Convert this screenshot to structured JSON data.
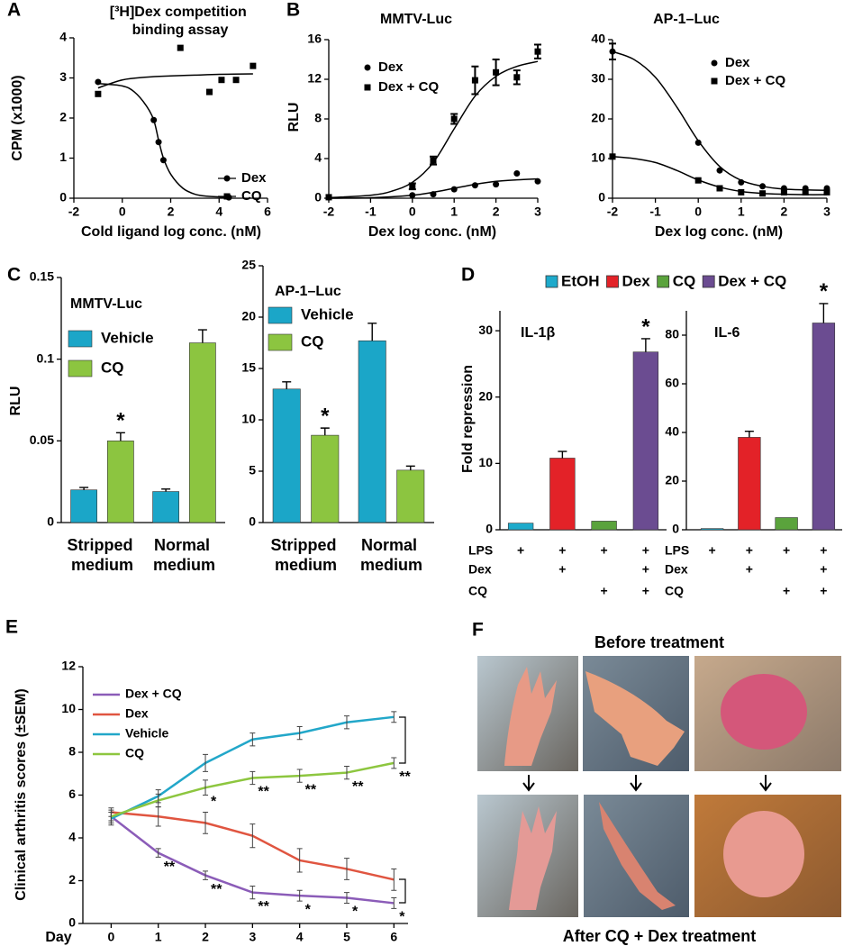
{
  "chart_data": [
    {
      "type": "scatter",
      "panel": "A",
      "title": "[³H]Dex competition binding assay",
      "x_label": "Cold ligand log conc. (nM)",
      "y_label": "CPM (x1000)",
      "xlim": [
        -2,
        6
      ],
      "xticks": [
        -2,
        0,
        2,
        4,
        6
      ],
      "ylim": [
        0,
        4
      ],
      "yticks": [
        0,
        1,
        2,
        3,
        4
      ],
      "series": [
        {
          "name": "Dex",
          "color": "#000000",
          "marker": "circle",
          "x": [
            -1,
            1.3,
            1.5,
            1.7,
            4.4
          ],
          "values": [
            2.9,
            1.95,
            1.4,
            0.95,
            0.02
          ],
          "fit_x": [
            -1,
            0,
            0.5,
            1,
            1.3,
            1.5,
            1.7,
            2,
            2.5,
            3,
            3.5,
            4.4
          ],
          "fit_values": [
            2.86,
            2.8,
            2.65,
            2.3,
            1.95,
            1.45,
            1.0,
            0.6,
            0.25,
            0.1,
            0.05,
            0.02
          ]
        },
        {
          "name": "CQ",
          "color": "#000000",
          "marker": "square",
          "x": [
            -1,
            2.4,
            3.6,
            4.1,
            4.7,
            5.4
          ],
          "values": [
            2.6,
            3.75,
            2.65,
            2.95,
            2.95,
            3.3
          ],
          "fit_x": [
            -1,
            0,
            1,
            2,
            3,
            4,
            5.4
          ],
          "fit_values": [
            2.75,
            2.95,
            3.02,
            3.05,
            3.07,
            3.09,
            3.1
          ]
        }
      ]
    },
    {
      "type": "scatter",
      "panel": "B",
      "title": "MMTV-Luc",
      "x_label": "Dex log conc. (nM)",
      "y_label": "RLU",
      "xlim": [
        -2,
        3
      ],
      "xticks": [
        -2,
        -1,
        0,
        1,
        2,
        3
      ],
      "ylim": [
        0,
        16
      ],
      "yticks": [
        0,
        4,
        8,
        12,
        16
      ],
      "series": [
        {
          "name": "Dex",
          "color": "#000000",
          "marker": "circle",
          "x": [
            -2,
            0,
            0.5,
            1,
            1.5,
            2,
            2.5,
            3
          ],
          "values": [
            0.1,
            0.3,
            0.4,
            0.9,
            1.3,
            1.4,
            2.5,
            1.7
          ],
          "fit_x": [
            -2,
            -1,
            0,
            0.5,
            1,
            1.5,
            2,
            2.5,
            3
          ],
          "fit_values": [
            0,
            0.05,
            0.3,
            0.6,
            1.0,
            1.4,
            1.7,
            1.85,
            1.95
          ]
        },
        {
          "name": "Dex + CQ",
          "color": "#000000",
          "marker": "square",
          "x": [
            -2,
            0,
            0.5,
            1,
            1.5,
            2,
            2.5,
            3
          ],
          "values": [
            0.1,
            1.2,
            3.8,
            8,
            11.9,
            12.7,
            12.2,
            14.8
          ],
          "errors": [
            null,
            0.3,
            0.4,
            0.5,
            1.4,
            1.3,
            0.7,
            0.7
          ],
          "fit_x": [
            -2,
            -1,
            -0.5,
            0,
            0.5,
            1,
            1.5,
            2,
            2.5,
            3
          ],
          "fit_values": [
            0.05,
            0.3,
            0.7,
            1.6,
            3.6,
            7,
            10.3,
            12.3,
            13.3,
            13.8
          ]
        }
      ]
    },
    {
      "type": "scatter",
      "title": "AP-1–Luc",
      "x_label": "Dex log conc. (nM)",
      "xlim": [
        -2,
        3
      ],
      "xticks": [
        -2,
        -1,
        0,
        1,
        2,
        3
      ],
      "ylim": [
        0,
        40
      ],
      "yticks": [
        0,
        10,
        20,
        30,
        40
      ],
      "series": [
        {
          "name": "Dex",
          "color": "#000000",
          "marker": "circle",
          "x": [
            -2,
            0,
            0.5,
            1,
            1.5,
            2,
            2.5,
            3
          ],
          "values": [
            37,
            14,
            7,
            4,
            3,
            2.5,
            2.5,
            2.5
          ],
          "errors": [
            2,
            null,
            null,
            null,
            null,
            null,
            null,
            null
          ],
          "fit_x": [
            -2,
            -1.5,
            -1,
            -0.5,
            0,
            0.5,
            1,
            1.5,
            2,
            2.5,
            3
          ],
          "fit_values": [
            37,
            35,
            30.5,
            23,
            14.5,
            8,
            4.5,
            3,
            2.3,
            2.1,
            2
          ]
        },
        {
          "name": "Dex + CQ",
          "color": "#000000",
          "marker": "square",
          "x": [
            -2,
            0,
            0.5,
            1,
            1.5,
            2,
            2.5,
            3
          ],
          "values": [
            10.5,
            4.5,
            2.5,
            1.5,
            1.2,
            1.5,
            1.5,
            1.5
          ],
          "fit_x": [
            -2,
            -1.5,
            -1,
            -0.5,
            0,
            0.5,
            1,
            1.5,
            2,
            2.5,
            3
          ],
          "fit_values": [
            10.5,
            10,
            9,
            7,
            4.6,
            2.8,
            1.7,
            1.2,
            1,
            0.9,
            0.9
          ]
        }
      ]
    },
    {
      "type": "bar",
      "panel": "C",
      "title": "MMTV-Luc",
      "y_label": "RLU",
      "categories": [
        "Stripped medium",
        "Normal medium"
      ],
      "ylim": [
        0,
        0.15
      ],
      "yticks": [
        0,
        0.05,
        0.1,
        0.15
      ],
      "series": [
        {
          "name": "Vehicle",
          "color": "#1ba6c8",
          "values": [
            0.02,
            0.019
          ],
          "errors": [
            0.0015,
            0.0015
          ]
        },
        {
          "name": "CQ",
          "color": "#8cc540",
          "values": [
            0.05,
            0.11
          ],
          "errors": [
            0.005,
            0.008
          ],
          "significance": [
            "*",
            null
          ]
        }
      ]
    },
    {
      "type": "bar",
      "title": "AP-1–Luc",
      "categories": [
        "Stripped medium",
        "Normal medium"
      ],
      "ylim": [
        0,
        25
      ],
      "yticks": [
        0,
        5,
        10,
        15,
        20,
        25
      ],
      "series": [
        {
          "name": "Vehicle",
          "color": "#1ba6c8",
          "values": [
            13,
            17.7
          ],
          "errors": [
            0.7,
            1.7
          ]
        },
        {
          "name": "CQ",
          "color": "#8cc540",
          "values": [
            8.5,
            5.1
          ],
          "errors": [
            0.7,
            0.4
          ],
          "significance": [
            "*",
            null
          ]
        }
      ]
    },
    {
      "type": "bar",
      "panel": "D",
      "title": "IL-1β",
      "y_label": "Fold repression",
      "ylim": [
        0,
        33
      ],
      "yticks": [
        0,
        10,
        20,
        30
      ],
      "series": [
        {
          "name": "EtOH",
          "color": "#1eaacb",
          "values": [
            1
          ]
        },
        {
          "name": "Dex",
          "color": "#e32228",
          "values": [
            10.8
          ],
          "errors": [
            1
          ]
        },
        {
          "name": "CQ",
          "color": "#5aa33c",
          "values": [
            1.3
          ]
        },
        {
          "name": "Dex + CQ",
          "color": "#6b4c91",
          "values": [
            26.8
          ],
          "errors": [
            2
          ],
          "significance": [
            "*"
          ]
        }
      ],
      "treatments": [
        {
          "label": "LPS",
          "marks": [
            "+",
            "+",
            "+",
            "+"
          ]
        },
        {
          "label": "Dex",
          "marks": [
            null,
            "+",
            null,
            "+"
          ]
        },
        {
          "label": "CQ",
          "marks": [
            null,
            null,
            "+",
            "+"
          ]
        }
      ]
    },
    {
      "type": "bar",
      "title": "IL-6",
      "ylim": [
        0,
        90
      ],
      "yticks": [
        0,
        20,
        40,
        60,
        80
      ],
      "series": [
        {
          "color": "#1eaacb",
          "values": [
            0.5
          ]
        },
        {
          "color": "#e32228",
          "values": [
            38
          ],
          "errors": [
            2.5
          ]
        },
        {
          "color": "#5aa33c",
          "values": [
            5
          ]
        },
        {
          "color": "#6b4c91",
          "values": [
            85
          ],
          "errors": [
            8
          ],
          "significance": [
            "*"
          ]
        }
      ],
      "treatments": [
        {
          "label": "LPS",
          "marks": [
            "+",
            "+",
            "+",
            "+"
          ]
        },
        {
          "label": "Dex",
          "marks": [
            null,
            "+",
            null,
            "+"
          ]
        },
        {
          "label": "CQ",
          "marks": [
            null,
            null,
            "+",
            "+"
          ]
        }
      ]
    },
    {
      "type": "line",
      "panel": "E",
      "x_label": "Day",
      "y_label": "Clinical arthritis scores (±SEM)",
      "x": [
        0,
        1,
        2,
        3,
        4,
        5,
        6
      ],
      "xlim": [
        -0.6,
        6.3
      ],
      "xticks": [
        0,
        1,
        2,
        3,
        4,
        5,
        6
      ],
      "ylim": [
        0,
        12
      ],
      "yticks": [
        0,
        2,
        4,
        6,
        8,
        10,
        12
      ],
      "series": [
        {
          "name": "Dex + CQ",
          "color": "#8b5cb8",
          "values": [
            5,
            3.3,
            2.25,
            1.45,
            1.3,
            1.2,
            0.95
          ],
          "errors": [
            0.2,
            0.2,
            0.2,
            0.3,
            0.25,
            0.25,
            0.25
          ],
          "significance": [
            null,
            "**",
            "**",
            "**",
            "*",
            "*",
            "*"
          ]
        },
        {
          "name": "Dex",
          "color": "#e05540",
          "values": [
            5.2,
            5.0,
            4.7,
            4.1,
            2.95,
            2.55,
            2.05
          ],
          "errors": [
            0.2,
            0.45,
            0.5,
            0.55,
            0.55,
            0.5,
            0.5
          ]
        },
        {
          "name": "Vehicle",
          "color": "#22a7c9",
          "values": [
            4.9,
            5.95,
            7.5,
            8.6,
            8.9,
            9.4,
            9.65
          ],
          "errors": [
            0.3,
            0.3,
            0.4,
            0.3,
            0.3,
            0.3,
            0.25
          ]
        },
        {
          "name": "CQ",
          "color": "#8dc63f",
          "values": [
            5.0,
            5.75,
            6.35,
            6.8,
            6.9,
            7.05,
            7.5
          ],
          "errors": [
            0.3,
            0.3,
            0.35,
            0.3,
            0.3,
            0.3,
            0.25
          ],
          "significance": [
            null,
            null,
            "*",
            "**",
            "**",
            "**",
            "**"
          ]
        }
      ]
    }
  ],
  "figure_f": {
    "panel": "F",
    "title_top": "Before treatment",
    "title_bottom": "After CQ + Dex treatment"
  }
}
